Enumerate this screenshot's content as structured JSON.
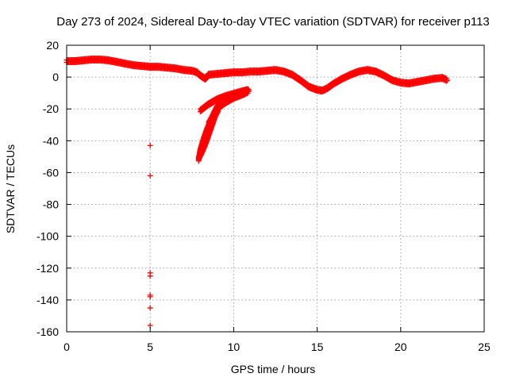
{
  "chart_data": {
    "type": "scatter",
    "title": "Day 273 of 2024, Sidereal Day-to-day VTEC variation (SDTVAR) for receiver p113",
    "xlabel": "GPS time / hours",
    "ylabel": "SDTVAR / TECUs",
    "xlim": [
      0,
      25
    ],
    "ylim": [
      -160,
      20
    ],
    "xticks": [
      0,
      5,
      10,
      15,
      20,
      25
    ],
    "yticks": [
      20,
      0,
      -20,
      -40,
      -60,
      -80,
      -100,
      -120,
      -140,
      -160
    ],
    "grid": true,
    "marker": "+",
    "color": "#ff0000",
    "series": [
      {
        "name": "main band",
        "points": [
          [
            0.0,
            10
          ],
          [
            0.5,
            10
          ],
          [
            1.0,
            10.5
          ],
          [
            1.5,
            11
          ],
          [
            2.0,
            11
          ],
          [
            2.5,
            10.5
          ],
          [
            3.0,
            9.5
          ],
          [
            3.5,
            8.5
          ],
          [
            4.0,
            7.5
          ],
          [
            4.5,
            7
          ],
          [
            5.0,
            6.5
          ],
          [
            5.5,
            6.5
          ],
          [
            6.0,
            6
          ],
          [
            6.5,
            5.5
          ],
          [
            7.0,
            4.5
          ],
          [
            7.5,
            4
          ],
          [
            7.8,
            3
          ],
          [
            8.0,
            1
          ],
          [
            8.3,
            -1
          ],
          [
            8.5,
            1.5
          ],
          [
            9.0,
            2
          ],
          [
            9.5,
            2.5
          ],
          [
            10.0,
            3
          ],
          [
            10.5,
            3
          ],
          [
            11.0,
            3.5
          ],
          [
            11.5,
            3.5
          ],
          [
            12.0,
            4
          ],
          [
            12.5,
            4.5
          ],
          [
            13.0,
            3.5
          ],
          [
            13.5,
            1.5
          ],
          [
            14.0,
            -2
          ],
          [
            14.5,
            -6
          ],
          [
            15.0,
            -8
          ],
          [
            15.3,
            -8.5
          ],
          [
            15.6,
            -7
          ],
          [
            16.0,
            -4
          ],
          [
            16.5,
            -1
          ],
          [
            17.0,
            1.5
          ],
          [
            17.5,
            3.5
          ],
          [
            18.0,
            4.5
          ],
          [
            18.5,
            3.5
          ],
          [
            19.0,
            1
          ],
          [
            19.5,
            -2
          ],
          [
            20.0,
            -3.5
          ],
          [
            20.5,
            -4
          ],
          [
            21.0,
            -3
          ],
          [
            21.5,
            -2
          ],
          [
            22.0,
            -1
          ],
          [
            22.5,
            -0.5
          ],
          [
            22.8,
            -2
          ]
        ]
      },
      {
        "name": "upper arc",
        "points": [
          [
            8.0,
            -21
          ],
          [
            8.5,
            -17
          ],
          [
            9.0,
            -14
          ],
          [
            9.5,
            -12
          ],
          [
            10.0,
            -10.5
          ],
          [
            10.5,
            -9
          ],
          [
            10.9,
            -8
          ]
        ]
      },
      {
        "name": "middle arc",
        "points": [
          [
            8.5,
            -29
          ],
          [
            9.0,
            -20
          ],
          [
            9.5,
            -16
          ],
          [
            10.0,
            -13
          ],
          [
            10.5,
            -11
          ],
          [
            10.9,
            -9
          ]
        ]
      },
      {
        "name": "deep arc outer",
        "points": [
          [
            7.9,
            -52
          ],
          [
            8.0,
            -46
          ],
          [
            8.2,
            -39
          ],
          [
            8.4,
            -33
          ],
          [
            8.6,
            -28
          ],
          [
            8.8,
            -23
          ],
          [
            9.0,
            -19
          ],
          [
            9.2,
            -16
          ]
        ]
      },
      {
        "name": "deep arc inner",
        "points": [
          [
            7.9,
            -51
          ],
          [
            8.1,
            -47
          ],
          [
            8.3,
            -42
          ],
          [
            8.5,
            -36
          ],
          [
            8.7,
            -30
          ],
          [
            8.9,
            -24
          ],
          [
            9.1,
            -20
          ]
        ]
      },
      {
        "name": "outliers at hour 5",
        "points": [
          [
            5.0,
            -43
          ],
          [
            5.0,
            -62
          ],
          [
            5.0,
            -123
          ],
          [
            5.0,
            -125
          ],
          [
            5.0,
            -137
          ],
          [
            5.0,
            -138
          ],
          [
            5.0,
            -145
          ],
          [
            5.0,
            -156
          ]
        ]
      }
    ]
  }
}
